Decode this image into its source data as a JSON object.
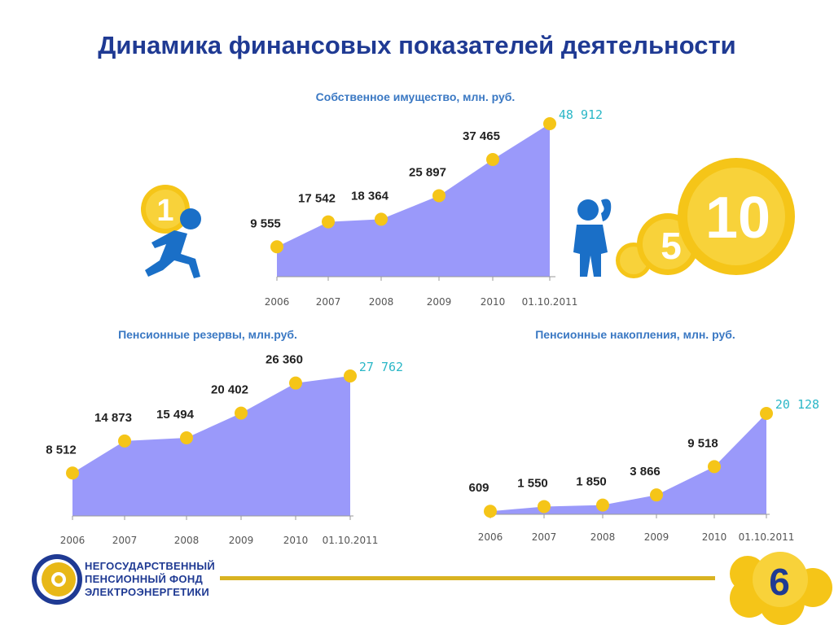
{
  "page": {
    "title": "Динамика финансовых показателей деятельности",
    "page_number": "6"
  },
  "logo": {
    "line1": "НЕГОСУДАРСТВЕННЫЙ",
    "line2": "ПЕНСИОННЫЙ ФОНД",
    "line3": "ЭЛЕКТРОЭНЕРГЕТИКИ"
  },
  "illustration": {
    "left_coin_digit": "1",
    "coin_small_digit": "5",
    "coin_big_digit": "10"
  },
  "colors": {
    "area_fill": "#9a99fa",
    "marker": "#f5c518",
    "highlight": "#2ab7c7",
    "title": "#1f3a93",
    "subtitle": "#3a78c3"
  },
  "chart_data": [
    {
      "type": "area",
      "title": "Собственное имущество, млн. руб.",
      "categories": [
        "2006",
        "2007",
        "2008",
        "2009",
        "2010",
        "01.10.2011"
      ],
      "values": [
        9555,
        17542,
        18364,
        25897,
        37465,
        48912
      ],
      "value_labels": [
        "9 555",
        "17 542",
        "18 364",
        "25 897",
        "37 465",
        "48 912"
      ]
    },
    {
      "type": "area",
      "title": "Пенсионные резервы, млн.руб.",
      "categories": [
        "2006",
        "2007",
        "2008",
        "2009",
        "2010",
        "01.10.2011"
      ],
      "values": [
        8512,
        14873,
        15494,
        20402,
        26360,
        27762
      ],
      "value_labels": [
        "8 512",
        "14 873",
        "15 494",
        "20 402",
        "26 360",
        "27 762"
      ]
    },
    {
      "type": "area",
      "title": "Пенсионные накопления, млн. руб.",
      "categories": [
        "2006",
        "2007",
        "2008",
        "2009",
        "2010",
        "01.10.2011"
      ],
      "values": [
        609,
        1550,
        1850,
        3866,
        9518,
        20128
      ],
      "value_labels": [
        "609",
        "1 550",
        "1 850",
        "3 866",
        "9 518",
        "20 128"
      ]
    }
  ]
}
